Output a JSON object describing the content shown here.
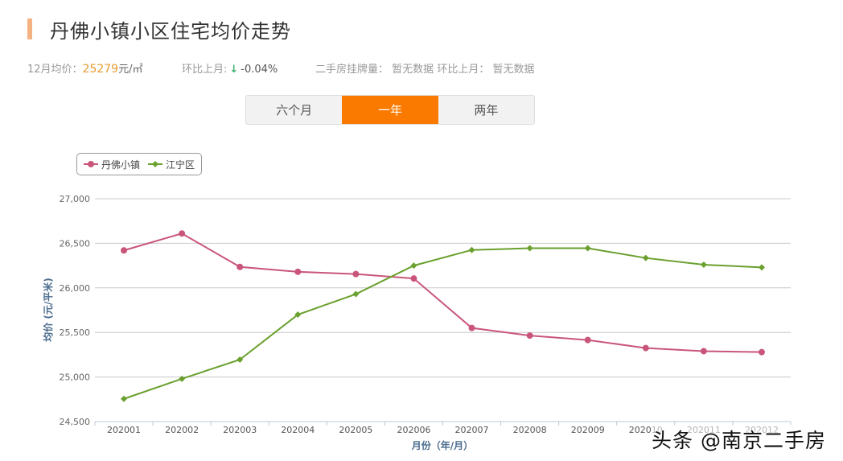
{
  "header": {
    "title": "丹佛小镇小区住宅均价走势",
    "accent_color": "#f4b283"
  },
  "stats": {
    "avg_price_label": "12月均价：",
    "avg_price_value": "25279",
    "avg_price_unit": "元/㎡",
    "mom_label": "环比上月:",
    "mom_arrow": "↓",
    "mom_value": "-0.04%",
    "listing_label": "二手房挂牌量：",
    "listing_value": "暂无数据",
    "listing_mom_label": "环比上月：",
    "listing_mom_value": "暂无数据"
  },
  "tabs": [
    {
      "label": "六个月",
      "active": false
    },
    {
      "label": "一年",
      "active": true
    },
    {
      "label": "两年",
      "active": false
    }
  ],
  "colors": {
    "series1": "#c9567a",
    "series2": "#6aa02e",
    "tab_active": "#fa7a00",
    "price_highlight": "#e69b30",
    "arrow_down": "#3cb371"
  },
  "watermark": "头条 @南京二手房",
  "chart_data": {
    "type": "line",
    "title": "丹佛小镇小区住宅均价走势",
    "xlabel": "月份（年/月）",
    "ylabel": "均价 (元/平米)",
    "ylim": [
      24500,
      27000
    ],
    "yticks": [
      24500,
      25000,
      25500,
      26000,
      26500,
      27000
    ],
    "ytick_labels": [
      "24,500",
      "25,000",
      "25,500",
      "26,000",
      "26,500",
      "27,000"
    ],
    "grid": true,
    "legend_position": "top-left",
    "categories": [
      "202001",
      "202002",
      "202003",
      "202004",
      "202005",
      "202006",
      "202007",
      "202008",
      "202009",
      "202010",
      "202011",
      "202012"
    ],
    "series": [
      {
        "name": "丹佛小镇",
        "marker": "circle",
        "color": "#c9567a",
        "values": [
          26420,
          26610,
          26235,
          26180,
          26155,
          26105,
          25550,
          25465,
          25415,
          25325,
          25290,
          25279
        ]
      },
      {
        "name": "江宁区",
        "marker": "diamond",
        "color": "#6aa02e",
        "values": [
          24755,
          24980,
          25195,
          25700,
          25930,
          26250,
          26425,
          26445,
          26445,
          26335,
          26260,
          26230
        ]
      }
    ]
  }
}
